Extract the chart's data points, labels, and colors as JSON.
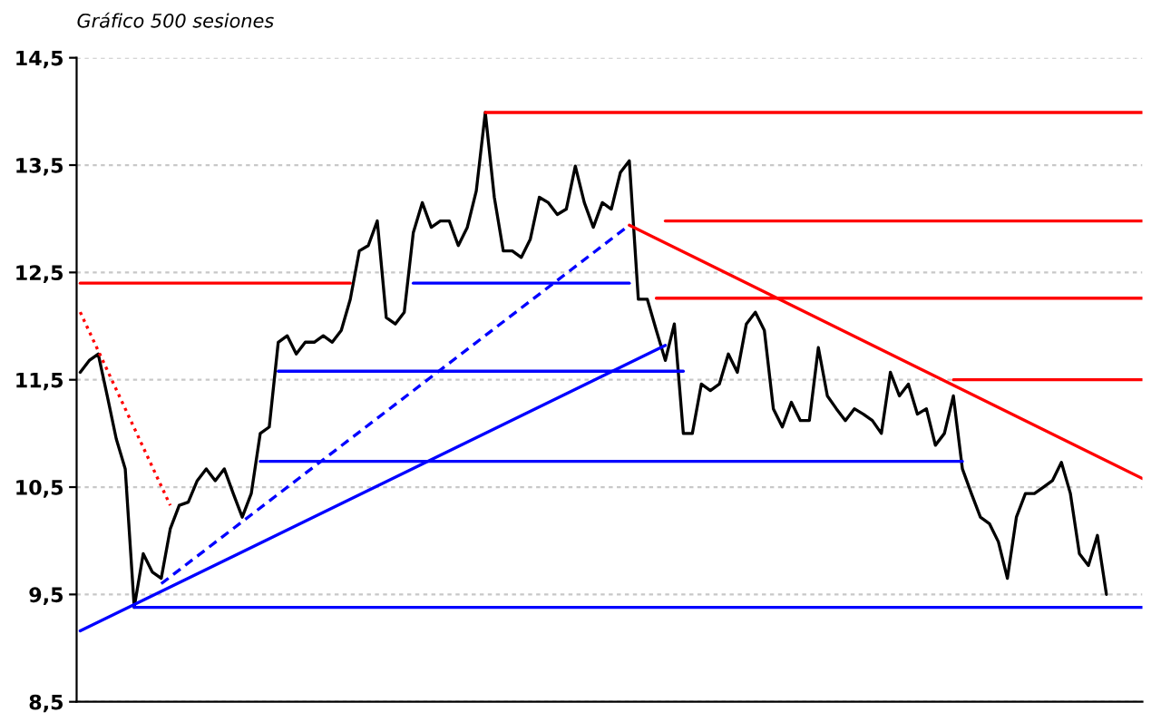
{
  "chart_data": {
    "type": "line",
    "title": "Gráfico 500 sesiones",
    "categories": [
      null,
      null,
      null,
      null,
      null,
      null,
      null,
      null,
      null,
      null,
      null,
      null,
      null,
      null,
      null,
      null,
      null,
      null,
      null,
      null,
      null,
      null,
      null,
      null,
      null,
      null,
      null,
      null,
      null,
      null,
      null,
      null,
      null,
      null,
      null,
      null,
      null,
      null,
      null,
      null,
      null,
      null,
      null,
      null,
      null,
      null,
      null,
      null,
      null,
      null,
      null,
      null,
      null,
      null,
      null,
      null,
      null,
      null,
      null,
      null,
      null,
      null,
      null,
      null,
      null,
      null,
      null,
      null,
      null,
      null,
      null,
      null,
      null,
      null,
      null,
      null,
      null,
      null,
      null,
      null,
      null,
      null,
      null,
      null,
      null,
      null,
      null,
      null,
      null,
      null,
      null,
      null,
      null,
      null,
      null,
      null,
      null,
      null,
      null,
      null,
      null,
      null,
      null,
      null,
      null,
      null,
      null,
      null,
      null,
      null,
      null,
      null,
      null,
      null,
      null,
      null,
      null,
      null,
      null
    ],
    "ylim": [
      8.5,
      14.5
    ],
    "yticks": [
      {
        "value": 8.5,
        "label": "8,5"
      },
      {
        "value": 9.5,
        "label": "9,5"
      },
      {
        "value": 10.5,
        "label": "10,5"
      },
      {
        "value": 11.5,
        "label": "11,5"
      },
      {
        "value": 12.5,
        "label": "12,5"
      },
      {
        "value": 13.5,
        "label": "13,5"
      },
      {
        "value": 14.5,
        "label": "14,5"
      }
    ],
    "grid": "y",
    "series": [
      {
        "color": "#000000",
        "line_style": "solid",
        "values": [
          11.57,
          11.68,
          11.74,
          11.35,
          10.95,
          10.67,
          9.38,
          9.88,
          9.71,
          9.65,
          10.11,
          10.33,
          10.36,
          10.56,
          10.67,
          10.56,
          10.67,
          10.44,
          10.22,
          10.44,
          11.0,
          11.06,
          11.85,
          11.91,
          11.74,
          11.85,
          11.85,
          11.91,
          11.85,
          11.96,
          12.25,
          12.7,
          12.75,
          12.98,
          12.08,
          12.02,
          12.13,
          12.87,
          13.15,
          12.92,
          12.98,
          12.98,
          12.75,
          12.92,
          13.26,
          13.99,
          13.2,
          12.7,
          12.7,
          12.64,
          12.81,
          13.2,
          13.15,
          13.04,
          13.09,
          13.49,
          13.15,
          12.92,
          13.15,
          13.09,
          13.43,
          13.54,
          12.25,
          12.25,
          11.96,
          11.68,
          12.02,
          11.0,
          11.0,
          11.46,
          11.4,
          11.46,
          11.74,
          11.57,
          12.02,
          12.13,
          11.96,
          11.23,
          11.06,
          11.29,
          11.12,
          11.12,
          11.8,
          11.35,
          11.23,
          11.12,
          11.23,
          11.18,
          11.12,
          11.0,
          11.57,
          11.35,
          11.46,
          11.18,
          11.23,
          10.89,
          11.0,
          11.35,
          10.67,
          10.44,
          10.22,
          10.16,
          9.99,
          9.65,
          10.22,
          10.44,
          10.44,
          10.5,
          10.56,
          10.73,
          10.44,
          9.88,
          9.77,
          10.05,
          9.5,
          null,
          null,
          null,
          null
        ]
      },
      {
        "color": "#ff0000",
        "line_style": "solid",
        "values": [
          12.4,
          null,
          null,
          null,
          null,
          null,
          null,
          null,
          null,
          null,
          null,
          null,
          null,
          null,
          null,
          null,
          null,
          null,
          null,
          null,
          null,
          null,
          null,
          null,
          null,
          null,
          null,
          null,
          null,
          null,
          12.4,
          null,
          null,
          null,
          null,
          null,
          null,
          null,
          null,
          null,
          null,
          null,
          null,
          null,
          null,
          null,
          null,
          null,
          null,
          null,
          null,
          null,
          null,
          null,
          null,
          null,
          null,
          null,
          null,
          null,
          null,
          null,
          null,
          null,
          null,
          null,
          null,
          null,
          null,
          null,
          null,
          null,
          null,
          null,
          null,
          null,
          null,
          null,
          null,
          null,
          null,
          null,
          null,
          null,
          null,
          null,
          null,
          null,
          null,
          null,
          null,
          null,
          null,
          null,
          null,
          null,
          null,
          null,
          null,
          null,
          null,
          null,
          null,
          null,
          null,
          null,
          null,
          null,
          null,
          null,
          null,
          null,
          null,
          null,
          null,
          null,
          null,
          null,
          null
        ]
      },
      {
        "color": "#ff0000",
        "line_style": "dotted",
        "values": [
          12.13,
          null,
          null,
          null,
          null,
          null,
          null,
          null,
          null,
          null,
          10.33,
          null,
          null,
          null,
          null,
          null,
          null,
          null,
          null,
          null,
          null,
          null,
          null,
          null,
          null,
          null,
          null,
          null,
          null,
          null,
          null,
          null,
          null,
          null,
          null,
          null,
          null,
          null,
          null,
          null,
          null,
          null,
          null,
          null,
          null,
          null,
          null,
          null,
          null,
          null,
          null,
          null,
          null,
          null,
          null,
          null,
          null,
          null,
          null,
          null,
          null,
          null,
          null,
          null,
          null,
          null,
          null,
          null,
          null,
          null,
          null,
          null,
          null,
          null,
          null,
          null,
          null,
          null,
          null,
          null,
          null,
          null,
          null,
          null,
          null,
          null,
          null,
          null,
          null,
          null,
          null,
          null,
          null,
          null,
          null,
          null,
          null,
          null,
          null,
          null,
          null,
          null,
          null,
          null,
          null,
          null,
          null,
          null,
          null,
          null,
          null,
          null,
          null,
          null,
          null,
          null,
          null,
          null,
          null
        ]
      },
      {
        "color": "#ff0000",
        "line_style": "solid",
        "values": [
          null,
          null,
          null,
          null,
          null,
          null,
          null,
          null,
          null,
          null,
          null,
          null,
          null,
          null,
          null,
          null,
          null,
          null,
          null,
          null,
          null,
          null,
          null,
          null,
          null,
          null,
          null,
          null,
          null,
          null,
          null,
          null,
          null,
          null,
          null,
          null,
          null,
          null,
          null,
          null,
          null,
          null,
          null,
          null,
          null,
          13.99,
          null,
          null,
          null,
          null,
          null,
          null,
          null,
          null,
          null,
          null,
          null,
          null,
          null,
          null,
          null,
          null,
          null,
          null,
          null,
          null,
          null,
          null,
          null,
          null,
          null,
          null,
          null,
          null,
          null,
          null,
          null,
          null,
          null,
          null,
          null,
          null,
          null,
          null,
          null,
          null,
          null,
          null,
          null,
          null,
          null,
          null,
          null,
          null,
          null,
          null,
          null,
          null,
          null,
          null,
          null,
          null,
          null,
          null,
          null,
          null,
          null,
          null,
          null,
          null,
          null,
          null,
          null,
          null,
          null,
          null,
          null,
          null,
          13.99
        ]
      },
      {
        "color": "#ff0000",
        "line_style": "solid",
        "values": [
          null,
          null,
          null,
          null,
          null,
          null,
          null,
          null,
          null,
          null,
          null,
          null,
          null,
          null,
          null,
          null,
          null,
          null,
          null,
          null,
          null,
          null,
          null,
          null,
          null,
          null,
          null,
          null,
          null,
          null,
          null,
          null,
          null,
          null,
          null,
          null,
          null,
          null,
          null,
          null,
          null,
          null,
          null,
          null,
          null,
          null,
          null,
          null,
          null,
          null,
          null,
          null,
          null,
          null,
          null,
          null,
          null,
          null,
          null,
          null,
          null,
          null,
          null,
          null,
          null,
          12.98,
          null,
          null,
          null,
          null,
          null,
          null,
          null,
          null,
          null,
          null,
          null,
          null,
          null,
          null,
          null,
          null,
          null,
          null,
          null,
          null,
          null,
          null,
          null,
          null,
          null,
          null,
          null,
          null,
          null,
          null,
          null,
          null,
          null,
          null,
          null,
          null,
          null,
          null,
          null,
          null,
          null,
          null,
          null,
          null,
          null,
          null,
          null,
          null,
          null,
          null,
          null,
          null,
          12.98
        ]
      },
      {
        "color": "#ff0000",
        "line_style": "solid",
        "values": [
          null,
          null,
          null,
          null,
          null,
          null,
          null,
          null,
          null,
          null,
          null,
          null,
          null,
          null,
          null,
          null,
          null,
          null,
          null,
          null,
          null,
          null,
          null,
          null,
          null,
          null,
          null,
          null,
          null,
          null,
          null,
          null,
          null,
          null,
          null,
          null,
          null,
          null,
          null,
          null,
          null,
          null,
          null,
          null,
          null,
          null,
          null,
          null,
          null,
          null,
          null,
          null,
          null,
          null,
          null,
          null,
          null,
          null,
          null,
          null,
          null,
          null,
          null,
          null,
          12.26,
          null,
          null,
          null,
          null,
          null,
          null,
          null,
          null,
          null,
          null,
          null,
          null,
          null,
          null,
          null,
          null,
          null,
          null,
          null,
          null,
          null,
          null,
          null,
          null,
          null,
          null,
          null,
          null,
          null,
          null,
          null,
          null,
          null,
          null,
          null,
          null,
          null,
          null,
          null,
          null,
          null,
          null,
          null,
          null,
          null,
          null,
          null,
          null,
          null,
          null,
          null,
          null,
          null,
          12.26
        ]
      },
      {
        "color": "#ff0000",
        "line_style": "solid",
        "values": [
          null,
          null,
          null,
          null,
          null,
          null,
          null,
          null,
          null,
          null,
          null,
          null,
          null,
          null,
          null,
          null,
          null,
          null,
          null,
          null,
          null,
          null,
          null,
          null,
          null,
          null,
          null,
          null,
          null,
          null,
          null,
          null,
          null,
          null,
          null,
          null,
          null,
          null,
          null,
          null,
          null,
          null,
          null,
          null,
          null,
          null,
          null,
          null,
          null,
          null,
          null,
          null,
          null,
          null,
          null,
          null,
          null,
          null,
          null,
          null,
          null,
          12.94,
          null,
          null,
          null,
          null,
          null,
          null,
          null,
          null,
          null,
          null,
          null,
          null,
          null,
          null,
          null,
          null,
          null,
          null,
          null,
          null,
          null,
          null,
          null,
          null,
          null,
          null,
          null,
          null,
          null,
          null,
          null,
          null,
          null,
          null,
          null,
          null,
          null,
          null,
          null,
          null,
          null,
          null,
          null,
          null,
          null,
          null,
          null,
          null,
          null,
          null,
          null,
          null,
          null,
          null,
          null,
          null,
          10.58
        ]
      },
      {
        "color": "#ff0000",
        "line_style": "solid",
        "values": [
          null,
          null,
          null,
          null,
          null,
          null,
          null,
          null,
          null,
          null,
          null,
          null,
          null,
          null,
          null,
          null,
          null,
          null,
          null,
          null,
          null,
          null,
          null,
          null,
          null,
          null,
          null,
          null,
          null,
          null,
          null,
          null,
          null,
          null,
          null,
          null,
          null,
          null,
          null,
          null,
          null,
          null,
          null,
          null,
          null,
          null,
          null,
          null,
          null,
          null,
          null,
          null,
          null,
          null,
          null,
          null,
          null,
          null,
          null,
          null,
          null,
          null,
          null,
          null,
          null,
          null,
          null,
          null,
          null,
          null,
          null,
          null,
          null,
          null,
          null,
          null,
          null,
          null,
          null,
          null,
          null,
          null,
          null,
          null,
          null,
          null,
          null,
          null,
          null,
          null,
          null,
          null,
          null,
          null,
          null,
          null,
          null,
          11.5,
          null,
          null,
          null,
          null,
          null,
          null,
          null,
          null,
          null,
          null,
          null,
          null,
          null,
          null,
          null,
          null,
          null,
          null,
          null,
          null,
          11.5
        ]
      },
      {
        "color": "#0000ff",
        "line_style": "solid",
        "values": [
          null,
          null,
          null,
          null,
          null,
          null,
          null,
          null,
          null,
          null,
          null,
          null,
          null,
          null,
          null,
          null,
          null,
          null,
          null,
          null,
          null,
          null,
          null,
          null,
          null,
          null,
          null,
          null,
          null,
          null,
          null,
          null,
          null,
          null,
          null,
          null,
          null,
          12.4,
          null,
          null,
          null,
          null,
          null,
          null,
          null,
          null,
          null,
          null,
          null,
          null,
          null,
          null,
          null,
          null,
          null,
          null,
          null,
          null,
          null,
          null,
          null,
          12.4,
          null,
          null,
          null,
          null,
          null,
          null,
          null,
          null,
          null,
          null,
          null,
          null,
          null,
          null,
          null,
          null,
          null,
          null,
          null,
          null,
          null,
          null,
          null,
          null,
          null,
          null,
          null,
          null,
          null,
          null,
          null,
          null,
          null,
          null,
          null,
          null,
          null,
          null,
          null,
          null,
          null,
          null,
          null,
          null,
          null,
          null,
          null,
          null,
          null,
          null,
          null,
          null,
          null,
          null,
          null,
          null,
          null
        ]
      },
      {
        "color": "#0000ff",
        "line_style": "solid",
        "values": [
          null,
          null,
          null,
          null,
          null,
          null,
          null,
          null,
          null,
          null,
          null,
          null,
          null,
          null,
          null,
          null,
          null,
          null,
          null,
          null,
          null,
          null,
          11.58,
          null,
          null,
          null,
          null,
          null,
          null,
          null,
          null,
          null,
          null,
          null,
          null,
          null,
          null,
          null,
          null,
          null,
          null,
          null,
          null,
          null,
          null,
          null,
          null,
          null,
          null,
          null,
          null,
          null,
          null,
          null,
          null,
          null,
          null,
          null,
          null,
          null,
          null,
          null,
          null,
          null,
          null,
          null,
          null,
          11.58,
          null,
          null,
          null,
          null,
          null,
          null,
          null,
          null,
          null,
          null,
          null,
          null,
          null,
          null,
          null,
          null,
          null,
          null,
          null,
          null,
          null,
          null,
          null,
          null,
          null,
          null,
          null,
          null,
          null,
          null,
          null,
          null,
          null,
          null,
          null,
          null,
          null,
          null,
          null,
          null,
          null,
          null,
          null,
          null,
          null,
          null,
          null,
          null,
          null,
          null,
          null
        ]
      },
      {
        "color": "#0000ff",
        "line_style": "solid",
        "values": [
          null,
          null,
          null,
          null,
          null,
          null,
          null,
          null,
          null,
          null,
          null,
          null,
          null,
          null,
          null,
          null,
          null,
          null,
          null,
          null,
          10.74,
          null,
          null,
          null,
          null,
          null,
          null,
          null,
          null,
          null,
          null,
          null,
          null,
          null,
          null,
          null,
          null,
          null,
          null,
          null,
          null,
          null,
          null,
          null,
          null,
          null,
          null,
          null,
          null,
          null,
          null,
          null,
          null,
          null,
          null,
          null,
          null,
          null,
          null,
          null,
          null,
          null,
          null,
          null,
          null,
          null,
          null,
          null,
          null,
          null,
          null,
          null,
          null,
          null,
          null,
          null,
          null,
          null,
          null,
          null,
          null,
          null,
          null,
          null,
          null,
          null,
          null,
          null,
          null,
          null,
          null,
          null,
          null,
          null,
          null,
          null,
          null,
          null,
          10.74,
          null,
          null,
          null,
          null,
          null,
          null,
          null,
          null,
          null,
          null,
          null,
          null,
          null,
          null,
          null,
          null,
          null,
          null,
          null,
          null
        ]
      },
      {
        "color": "#0000ff",
        "line_style": "solid",
        "values": [
          null,
          null,
          null,
          null,
          null,
          null,
          9.38,
          null,
          null,
          null,
          null,
          null,
          null,
          null,
          null,
          null,
          null,
          null,
          null,
          null,
          null,
          null,
          null,
          null,
          null,
          null,
          null,
          null,
          null,
          null,
          null,
          null,
          null,
          null,
          null,
          null,
          null,
          null,
          null,
          null,
          null,
          null,
          null,
          null,
          null,
          null,
          null,
          null,
          null,
          null,
          null,
          null,
          null,
          null,
          null,
          null,
          null,
          null,
          null,
          null,
          null,
          null,
          null,
          null,
          null,
          null,
          null,
          null,
          null,
          null,
          null,
          null,
          null,
          null,
          null,
          null,
          null,
          null,
          null,
          null,
          null,
          null,
          null,
          null,
          null,
          null,
          null,
          null,
          null,
          null,
          null,
          null,
          null,
          null,
          null,
          null,
          null,
          null,
          null,
          null,
          null,
          null,
          null,
          null,
          null,
          null,
          null,
          null,
          null,
          null,
          null,
          null,
          null,
          null,
          null,
          null,
          null,
          null,
          9.38
        ]
      },
      {
        "color": "#0000ff",
        "line_style": "dashed",
        "values": [
          null,
          null,
          null,
          null,
          null,
          null,
          null,
          null,
          null,
          9.6,
          null,
          null,
          null,
          null,
          null,
          null,
          null,
          null,
          null,
          null,
          null,
          null,
          null,
          null,
          null,
          null,
          null,
          null,
          null,
          null,
          null,
          null,
          null,
          null,
          null,
          null,
          null,
          null,
          null,
          null,
          null,
          null,
          null,
          null,
          null,
          null,
          null,
          null,
          null,
          null,
          null,
          null,
          null,
          null,
          null,
          null,
          null,
          null,
          null,
          null,
          null,
          12.94,
          null,
          null,
          null,
          null,
          null,
          null,
          null,
          null,
          null,
          null,
          null,
          null,
          null,
          null,
          null,
          null,
          null,
          null,
          null,
          null,
          null,
          null,
          null,
          null,
          null,
          null,
          null,
          null,
          null,
          null,
          null,
          null,
          null,
          null,
          null,
          null,
          null,
          null,
          null,
          null,
          null,
          null,
          null,
          null,
          null,
          null,
          null,
          null,
          null,
          null,
          null,
          null,
          null,
          null,
          null,
          null,
          null
        ]
      },
      {
        "color": "#0000ff",
        "line_style": "solid",
        "values": [
          9.16,
          null,
          null,
          null,
          null,
          null,
          null,
          null,
          null,
          null,
          null,
          null,
          null,
          null,
          null,
          null,
          null,
          null,
          null,
          null,
          null,
          null,
          null,
          null,
          null,
          null,
          null,
          null,
          null,
          null,
          null,
          null,
          null,
          null,
          null,
          null,
          null,
          null,
          null,
          null,
          null,
          null,
          null,
          null,
          null,
          null,
          null,
          null,
          null,
          null,
          null,
          null,
          null,
          null,
          null,
          null,
          null,
          null,
          null,
          null,
          null,
          null,
          null,
          null,
          null,
          11.82,
          null,
          null,
          null,
          null,
          null,
          null,
          null,
          null,
          null,
          null,
          null,
          null,
          null,
          null,
          null,
          null,
          null,
          null,
          null,
          null,
          null,
          null,
          null,
          null,
          null,
          null,
          null,
          null,
          null,
          null,
          null,
          null,
          null,
          null,
          null,
          null,
          null,
          null,
          null,
          null,
          null,
          null,
          null,
          null,
          null,
          null,
          null,
          null,
          null,
          null,
          null,
          null,
          null
        ]
      }
    ]
  }
}
